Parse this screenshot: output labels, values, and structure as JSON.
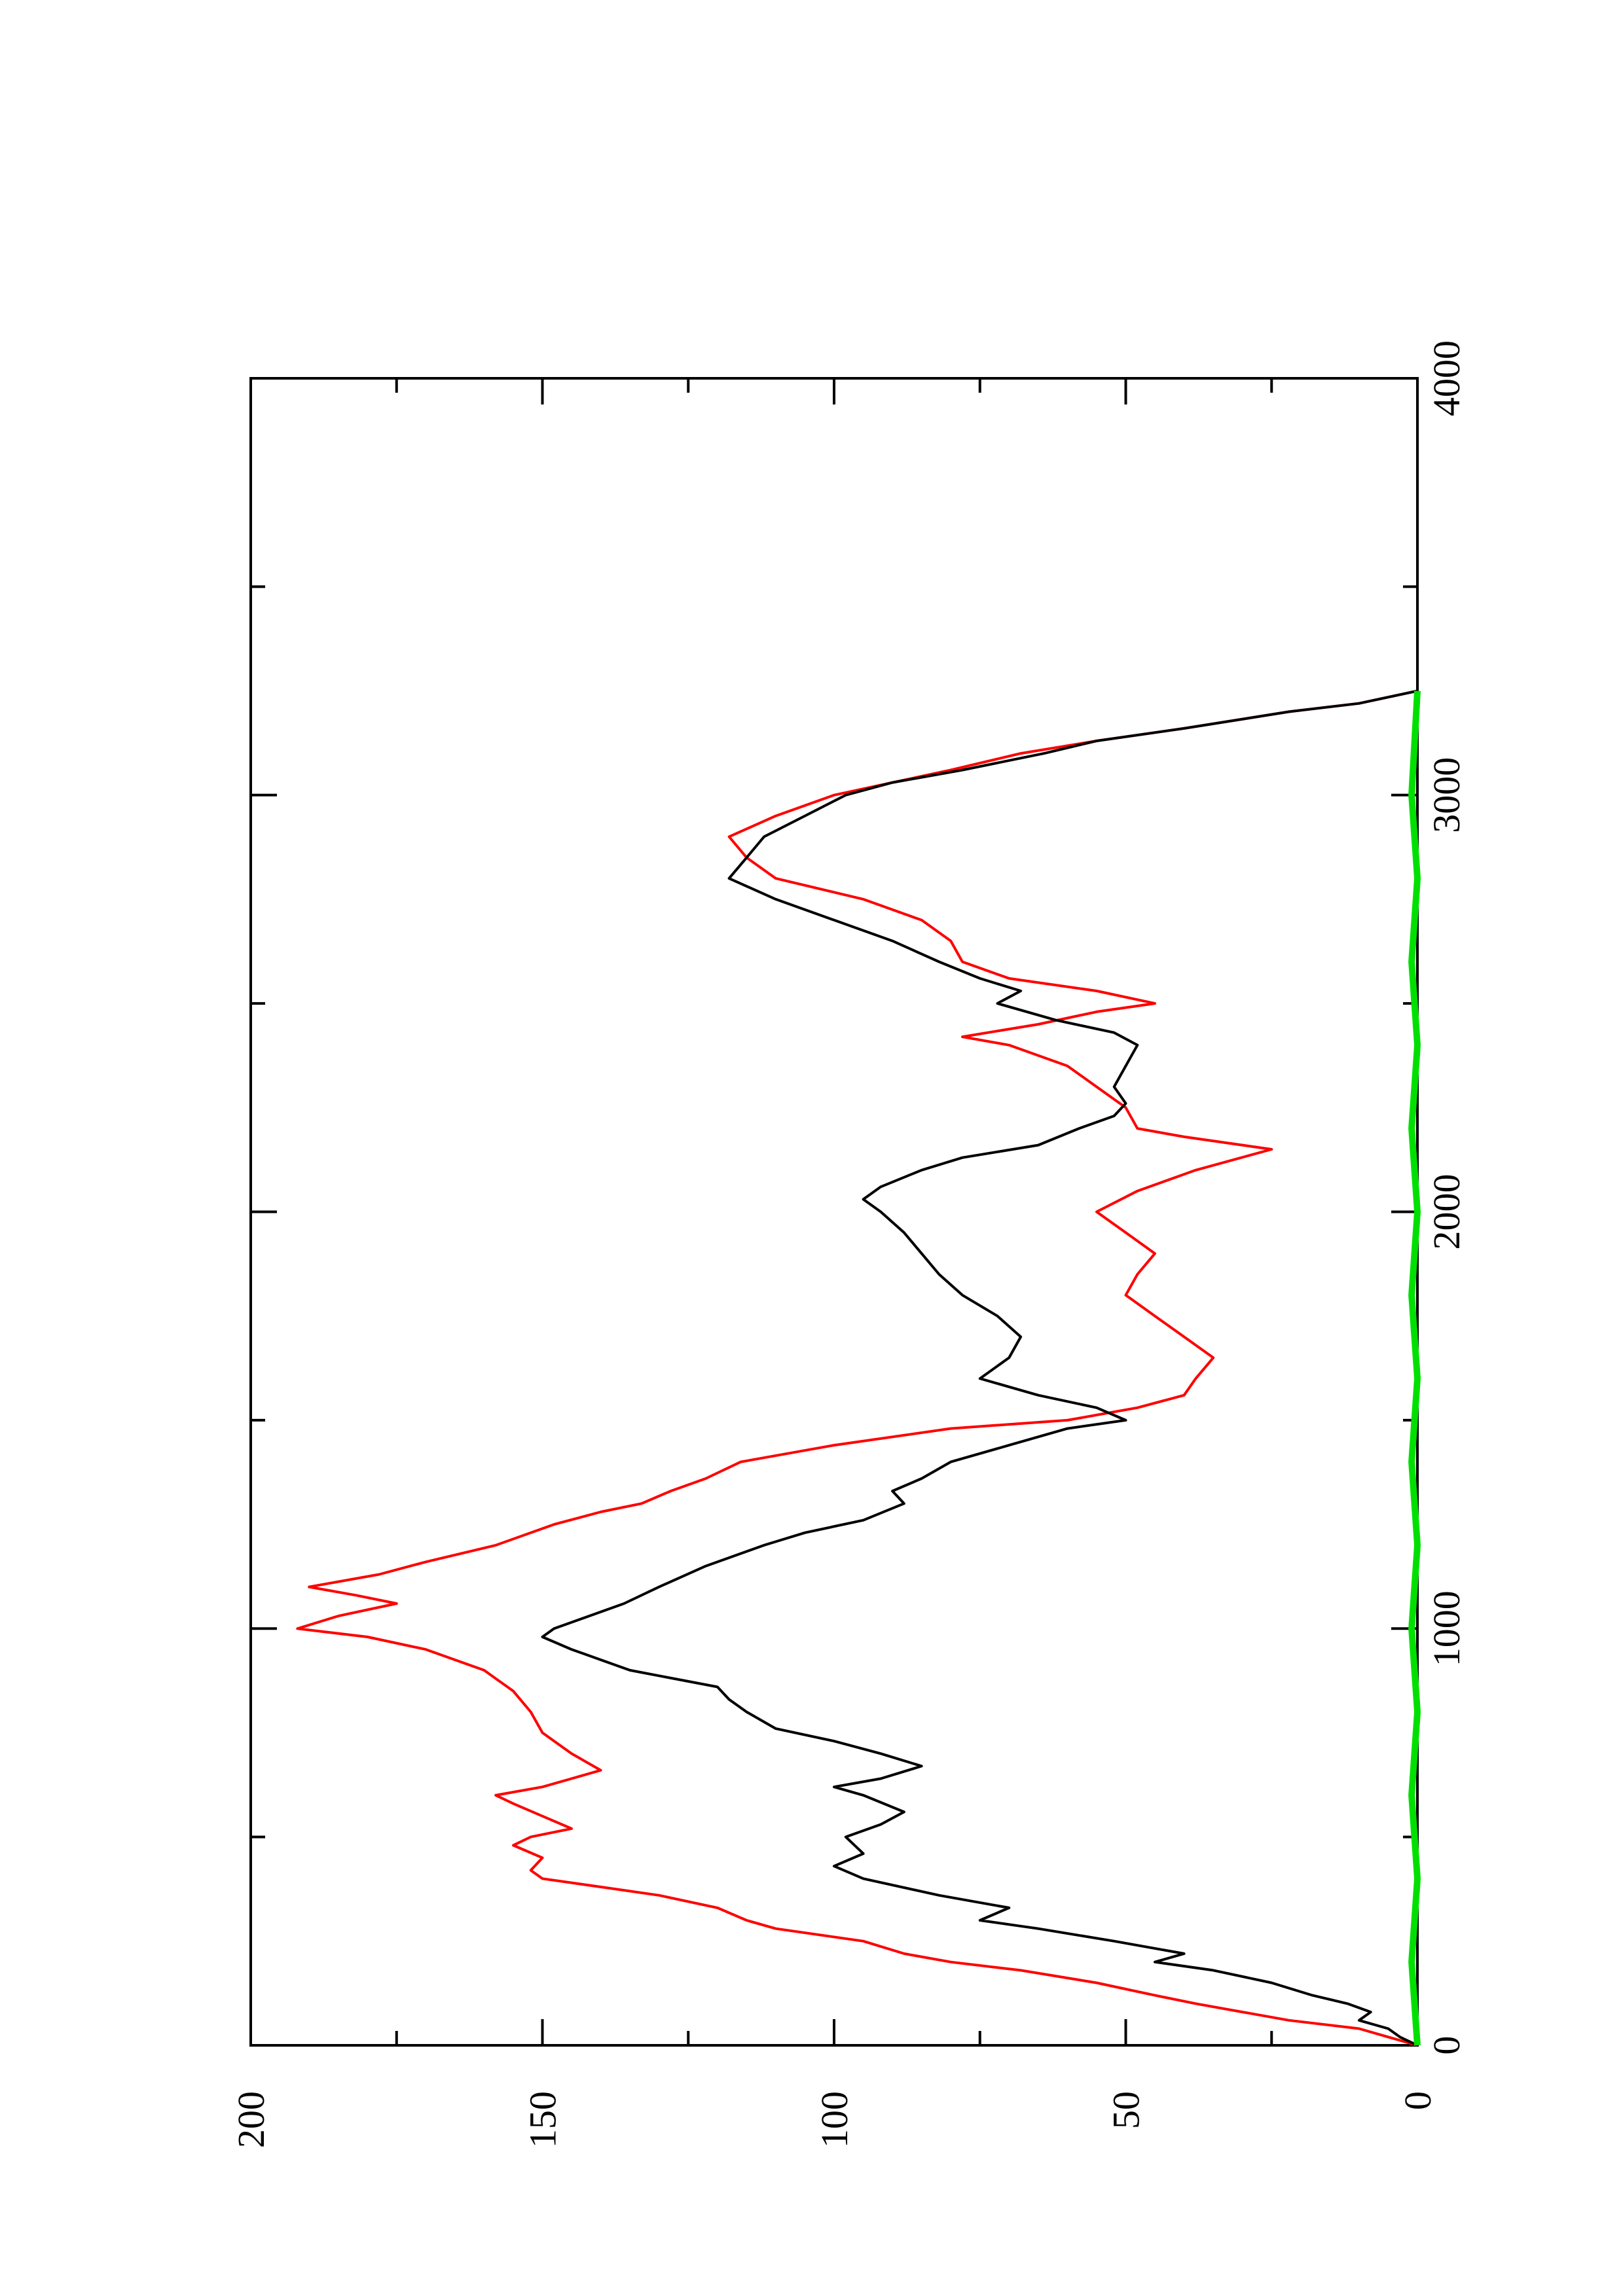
{
  "chart_data": {
    "type": "line",
    "orientation": "rotated-90-clockwise",
    "xlim": [
      0,
      4000
    ],
    "ylim": [
      0,
      200
    ],
    "x_ticks": [
      "0",
      "1000",
      "2000",
      "3000",
      "4000"
    ],
    "y_ticks": [
      "0",
      "50",
      "100",
      "150",
      "200"
    ],
    "grid": false,
    "series": [
      {
        "color": "#ff0000",
        "points": [
          [
            0,
            0
          ],
          [
            20,
            5
          ],
          [
            40,
            10
          ],
          [
            60,
            22
          ],
          [
            80,
            30
          ],
          [
            100,
            38
          ],
          [
            120,
            45
          ],
          [
            150,
            55
          ],
          [
            180,
            68
          ],
          [
            200,
            80
          ],
          [
            220,
            88
          ],
          [
            250,
            95
          ],
          [
            280,
            110
          ],
          [
            300,
            115
          ],
          [
            330,
            120
          ],
          [
            360,
            130
          ],
          [
            380,
            140
          ],
          [
            400,
            150
          ],
          [
            420,
            152
          ],
          [
            450,
            150
          ],
          [
            480,
            155
          ],
          [
            500,
            152
          ],
          [
            520,
            145
          ],
          [
            550,
            150
          ],
          [
            580,
            155
          ],
          [
            600,
            158
          ],
          [
            620,
            150
          ],
          [
            640,
            145
          ],
          [
            660,
            140
          ],
          [
            700,
            145
          ],
          [
            750,
            150
          ],
          [
            800,
            152
          ],
          [
            850,
            155
          ],
          [
            900,
            160
          ],
          [
            950,
            170
          ],
          [
            980,
            180
          ],
          [
            1000,
            192
          ],
          [
            1030,
            185
          ],
          [
            1060,
            175
          ],
          [
            1080,
            182
          ],
          [
            1100,
            190
          ],
          [
            1130,
            178
          ],
          [
            1160,
            170
          ],
          [
            1200,
            158
          ],
          [
            1250,
            148
          ],
          [
            1280,
            140
          ],
          [
            1300,
            133
          ],
          [
            1330,
            128
          ],
          [
            1360,
            122
          ],
          [
            1400,
            116
          ],
          [
            1440,
            100
          ],
          [
            1480,
            80
          ],
          [
            1500,
            60
          ],
          [
            1530,
            48
          ],
          [
            1560,
            40
          ],
          [
            1600,
            38
          ],
          [
            1650,
            35
          ],
          [
            1700,
            40
          ],
          [
            1750,
            45
          ],
          [
            1800,
            50
          ],
          [
            1850,
            48
          ],
          [
            1900,
            45
          ],
          [
            1950,
            50
          ],
          [
            2000,
            55
          ],
          [
            2050,
            48
          ],
          [
            2100,
            38
          ],
          [
            2150,
            25
          ],
          [
            2180,
            40
          ],
          [
            2200,
            48
          ],
          [
            2250,
            50
          ],
          [
            2300,
            55
          ],
          [
            2350,
            60
          ],
          [
            2400,
            70
          ],
          [
            2420,
            78
          ],
          [
            2450,
            65
          ],
          [
            2480,
            55
          ],
          [
            2500,
            45
          ],
          [
            2530,
            55
          ],
          [
            2560,
            70
          ],
          [
            2600,
            78
          ],
          [
            2650,
            80
          ],
          [
            2700,
            85
          ],
          [
            2750,
            95
          ],
          [
            2800,
            110
          ],
          [
            2850,
            115
          ],
          [
            2900,
            118
          ],
          [
            2950,
            110
          ],
          [
            3000,
            100
          ],
          [
            3030,
            90
          ],
          [
            3060,
            80
          ],
          [
            3100,
            68
          ],
          [
            3130,
            55
          ],
          [
            3160,
            40
          ],
          [
            3200,
            22
          ],
          [
            3220,
            10
          ],
          [
            3250,
            0
          ]
        ]
      },
      {
        "color": "#000000",
        "points": [
          [
            0,
            0
          ],
          [
            20,
            3
          ],
          [
            40,
            5
          ],
          [
            60,
            10
          ],
          [
            80,
            8
          ],
          [
            100,
            12
          ],
          [
            120,
            18
          ],
          [
            150,
            25
          ],
          [
            180,
            35
          ],
          [
            200,
            45
          ],
          [
            220,
            40
          ],
          [
            250,
            52
          ],
          [
            280,
            65
          ],
          [
            300,
            75
          ],
          [
            330,
            70
          ],
          [
            360,
            82
          ],
          [
            400,
            95
          ],
          [
            430,
            100
          ],
          [
            460,
            95
          ],
          [
            500,
            98
          ],
          [
            530,
            92
          ],
          [
            560,
            88
          ],
          [
            600,
            95
          ],
          [
            620,
            100
          ],
          [
            640,
            92
          ],
          [
            670,
            85
          ],
          [
            700,
            92
          ],
          [
            730,
            100
          ],
          [
            760,
            110
          ],
          [
            800,
            115
          ],
          [
            830,
            118
          ],
          [
            860,
            120
          ],
          [
            900,
            135
          ],
          [
            950,
            145
          ],
          [
            980,
            150
          ],
          [
            1000,
            148
          ],
          [
            1030,
            142
          ],
          [
            1060,
            136
          ],
          [
            1100,
            130
          ],
          [
            1150,
            122
          ],
          [
            1200,
            112
          ],
          [
            1230,
            105
          ],
          [
            1260,
            95
          ],
          [
            1300,
            88
          ],
          [
            1330,
            90
          ],
          [
            1360,
            85
          ],
          [
            1400,
            80
          ],
          [
            1440,
            70
          ],
          [
            1480,
            60
          ],
          [
            1500,
            50
          ],
          [
            1530,
            55
          ],
          [
            1560,
            65
          ],
          [
            1600,
            75
          ],
          [
            1650,
            70
          ],
          [
            1700,
            68
          ],
          [
            1750,
            72
          ],
          [
            1800,
            78
          ],
          [
            1850,
            82
          ],
          [
            1900,
            85
          ],
          [
            1950,
            88
          ],
          [
            2000,
            92
          ],
          [
            2030,
            95
          ],
          [
            2060,
            92
          ],
          [
            2100,
            85
          ],
          [
            2130,
            78
          ],
          [
            2160,
            65
          ],
          [
            2200,
            58
          ],
          [
            2230,
            52
          ],
          [
            2260,
            50
          ],
          [
            2300,
            52
          ],
          [
            2350,
            50
          ],
          [
            2400,
            48
          ],
          [
            2430,
            52
          ],
          [
            2460,
            62
          ],
          [
            2500,
            72
          ],
          [
            2530,
            68
          ],
          [
            2560,
            75
          ],
          [
            2600,
            82
          ],
          [
            2650,
            90
          ],
          [
            2700,
            100
          ],
          [
            2750,
            110
          ],
          [
            2800,
            118
          ],
          [
            2850,
            115
          ],
          [
            2900,
            112
          ],
          [
            2950,
            105
          ],
          [
            3000,
            98
          ],
          [
            3030,
            90
          ],
          [
            3060,
            78
          ],
          [
            3100,
            64
          ],
          [
            3130,
            55
          ],
          [
            3160,
            40
          ],
          [
            3200,
            22
          ],
          [
            3220,
            10
          ],
          [
            3250,
            0
          ]
        ]
      },
      {
        "color": "#00e000",
        "points": [
          [
            0,
            0
          ],
          [
            200,
            1
          ],
          [
            400,
            0
          ],
          [
            600,
            1
          ],
          [
            800,
            0
          ],
          [
            1000,
            1
          ],
          [
            1200,
            0
          ],
          [
            1400,
            1
          ],
          [
            1600,
            0
          ],
          [
            1800,
            1
          ],
          [
            2000,
            0
          ],
          [
            2200,
            1
          ],
          [
            2400,
            0
          ],
          [
            2600,
            1
          ],
          [
            2800,
            0
          ],
          [
            3000,
            1
          ],
          [
            3250,
            0
          ]
        ]
      }
    ]
  }
}
